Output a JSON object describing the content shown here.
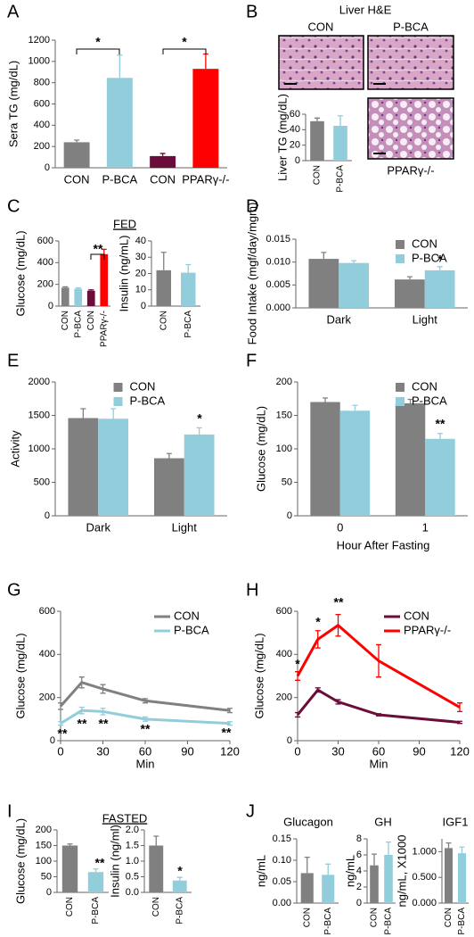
{
  "chart_data": [
    {
      "panel": "A",
      "type": "bar",
      "ylabel": "Sera TG (mg/dL)",
      "categories": [
        "CON",
        "P-BCA",
        "CON",
        "PPARγ-/-"
      ],
      "values": [
        240,
        845,
        110,
        930
      ],
      "errors": [
        20,
        215,
        25,
        140
      ],
      "colors": [
        "#808080",
        "#92cddc",
        "#6b0d3a",
        "#ff0000"
      ],
      "ylim": [
        0,
        1200
      ],
      "yticks": [
        0,
        200,
        400,
        600,
        800,
        1000,
        1200
      ],
      "annotations": [
        "*",
        "*"
      ]
    },
    {
      "panel": "B",
      "type": "bar",
      "title": "Liver H&E",
      "image_labels": [
        "CON",
        "P-BCA",
        "PPARγ-/-"
      ],
      "ylabel": "Liver TG (mg/dL)",
      "categories": [
        "CON",
        "P-BCA"
      ],
      "values": [
        51,
        45
      ],
      "errors": [
        4,
        13
      ],
      "colors": [
        "#808080",
        "#92cddc"
      ],
      "ylim": [
        0,
        60
      ],
      "yticks": [
        0,
        20,
        40,
        60
      ]
    },
    {
      "panel": "C",
      "type": "bar",
      "title": "FED",
      "ylabel": "Glucose (mg/dL)",
      "categories": [
        "CON",
        "P-BCA",
        "CON",
        "PPARγ-/-"
      ],
      "values": [
        170,
        160,
        142,
        478
      ],
      "errors": [
        8,
        8,
        8,
        45
      ],
      "colors": [
        "#808080",
        "#92cddc",
        "#6b0d3a",
        "#ff0000"
      ],
      "ylim": [
        0,
        600
      ],
      "yticks": [
        0,
        200,
        400,
        600
      ],
      "annotations": [
        "**"
      ]
    },
    {
      "type": "bar",
      "ylabel": "Insulin (ng/mL)",
      "categories": [
        "CON",
        "P-BCA"
      ],
      "values": [
        22,
        20.5
      ],
      "errors": [
        11,
        5
      ],
      "colors": [
        "#808080",
        "#92cddc"
      ],
      "ylim": [
        0,
        40
      ],
      "yticks": [
        0,
        10,
        20,
        30,
        40
      ]
    },
    {
      "panel": "D",
      "type": "bar",
      "ylabel": "Food Intake (mgf/day/mgm)",
      "categories": [
        "Dark",
        "Light"
      ],
      "series": [
        {
          "name": "CON",
          "color": "#808080",
          "values": [
            0.0107,
            0.0062
          ],
          "errors": [
            0.0014,
            0.0006
          ]
        },
        {
          "name": "P-BCA",
          "color": "#92cddc",
          "values": [
            0.0098,
            0.0082
          ],
          "errors": [
            0.0005,
            0.0008
          ]
        }
      ],
      "ylim": [
        0,
        0.015
      ],
      "yticks": [
        {
          "value": 0,
          "label": "0.000"
        },
        {
          "value": 0.005,
          "label": "0.005"
        },
        {
          "value": 0.01,
          "label": "0.010"
        },
        {
          "value": 0.015,
          "label": "0.015"
        }
      ],
      "legend": "upper right",
      "annotations": [
        "*"
      ]
    },
    {
      "panel": "E",
      "type": "bar",
      "ylabel": "Activity",
      "categories": [
        "Dark",
        "Light"
      ],
      "series": [
        {
          "name": "CON",
          "color": "#808080",
          "values": [
            1460,
            860
          ],
          "errors": [
            140,
            70
          ]
        },
        {
          "name": "P-BCA",
          "color": "#92cddc",
          "values": [
            1450,
            1215
          ],
          "errors": [
            150,
            100
          ]
        }
      ],
      "ylim": [
        0,
        2000
      ],
      "yticks": [
        0,
        500,
        1000,
        1500,
        2000
      ],
      "legend": "upper center",
      "annotations": [
        "*"
      ]
    },
    {
      "panel": "F",
      "type": "bar",
      "ylabel": "Glucose (mg/dL)",
      "xlabel": "Hour After Fasting",
      "categories": [
        "0",
        "1"
      ],
      "series": [
        {
          "name": "CON",
          "color": "#808080",
          "values": [
            170,
            168
          ],
          "errors": [
            6,
            6
          ]
        },
        {
          "name": "P-BCA",
          "color": "#92cddc",
          "values": [
            157,
            115
          ],
          "errors": [
            8,
            8
          ]
        }
      ],
      "ylim": [
        0,
        200
      ],
      "yticks": [
        0,
        50,
        100,
        150,
        200
      ],
      "legend": "upper right",
      "annotations": [
        "**"
      ]
    },
    {
      "panel": "G",
      "type": "line",
      "ylabel": "Glucose (mg/dL)",
      "xlabel": "Min",
      "x": [
        0,
        15,
        30,
        60,
        120
      ],
      "series": [
        {
          "name": "CON",
          "color": "#808080",
          "values": [
            160,
            270,
            240,
            185,
            140
          ],
          "errors": [
            15,
            25,
            20,
            10,
            10
          ]
        },
        {
          "name": "P-BCA",
          "color": "#92cddc",
          "values": [
            80,
            140,
            135,
            100,
            80
          ],
          "errors": [
            8,
            15,
            15,
            10,
            8
          ]
        }
      ],
      "xlim": [
        0,
        120
      ],
      "xticks": [
        0,
        30,
        60,
        90,
        120
      ],
      "ylim": [
        0,
        600
      ],
      "yticks": [
        0,
        200,
        400,
        600
      ],
      "legend": "upper right",
      "annotations": [
        "**",
        "**",
        "**",
        "**",
        "**"
      ]
    },
    {
      "panel": "H",
      "type": "line",
      "ylabel": "Glucose (mg/dL)",
      "xlabel": "Min",
      "x": [
        0,
        15,
        30,
        60,
        120
      ],
      "series": [
        {
          "name": "CON",
          "color": "#6b0d3a",
          "values": [
            120,
            235,
            180,
            120,
            85
          ],
          "errors": [
            10,
            10,
            10,
            5,
            5
          ]
        },
        {
          "name": "PPARγ-/-",
          "color": "#ff0000",
          "values": [
            300,
            470,
            535,
            370,
            155
          ],
          "errors": [
            20,
            40,
            50,
            75,
            20
          ]
        }
      ],
      "xlim": [
        0,
        120
      ],
      "xticks": [
        0,
        30,
        60,
        90,
        120
      ],
      "ylim": [
        0,
        600
      ],
      "yticks": [
        0,
        200,
        400,
        600
      ],
      "legend": "upper right",
      "annotations": [
        "*",
        "*",
        "**"
      ]
    },
    {
      "panel": "I",
      "type": "bar",
      "title": "FASTED",
      "ylabel": "Glucose (mg/dL)",
      "categories": [
        "CON",
        "P-BCA"
      ],
      "values": [
        150,
        65
      ],
      "errors": [
        5,
        10
      ],
      "colors": [
        "#808080",
        "#92cddc"
      ],
      "ylim": [
        0,
        200
      ],
      "yticks": [
        0,
        50,
        100,
        150,
        200
      ],
      "annotations": [
        "**"
      ]
    },
    {
      "type": "bar",
      "ylabel": "Insulin (ng/ml)",
      "categories": [
        "CON",
        "P-BCA"
      ],
      "values": [
        1.5,
        0.38
      ],
      "errors": [
        0.3,
        0.1
      ],
      "colors": [
        "#808080",
        "#92cddc"
      ],
      "ylim": [
        0,
        2
      ],
      "yticks": [
        {
          "value": 0,
          "label": "0.0"
        },
        {
          "value": 0.5,
          "label": "0.5"
        },
        {
          "value": 1,
          "label": "1.0"
        },
        {
          "value": 1.5,
          "label": "1.5"
        },
        {
          "value": 2,
          "label": "2.0"
        }
      ],
      "annotations": [
        "*"
      ]
    },
    {
      "panel": "J",
      "type": "bar",
      "title": "Glucagon",
      "ylabel": "ng/mL",
      "categories": [
        "CON",
        "P-BCA"
      ],
      "values": [
        0.07,
        0.066
      ],
      "errors": [
        0.037,
        0.025
      ],
      "colors": [
        "#808080",
        "#92cddc"
      ],
      "ylim": [
        0,
        0.15
      ],
      "yticks": [
        {
          "value": 0,
          "label": "0.00"
        },
        {
          "value": 0.05,
          "label": "0.05"
        },
        {
          "value": 0.1,
          "label": "0.10"
        },
        {
          "value": 0.15,
          "label": "0.15"
        }
      ]
    },
    {
      "type": "bar",
      "title": "GH",
      "ylabel": "ng/mL",
      "categories": [
        "CON",
        "P-BCA"
      ],
      "values": [
        4.7,
        6
      ],
      "errors": [
        1.4,
        1.6
      ],
      "colors": [
        "#808080",
        "#92cddc"
      ],
      "ylim": [
        0,
        8
      ],
      "yticks": [
        0,
        2,
        4,
        6,
        8
      ]
    },
    {
      "type": "bar",
      "title": "IGF1",
      "ylabel": "ng/mL, X1000",
      "categories": [
        "CON",
        "P-BCA"
      ],
      "values": [
        1.07,
        0.97
      ],
      "errors": [
        0.1,
        0.12
      ],
      "colors": [
        "#808080",
        "#92cddc"
      ],
      "ylim": [
        0,
        1.25
      ],
      "yticks": [
        {
          "value": 0,
          "label": "0.000"
        },
        {
          "value": 0.5,
          "label": "0.500"
        },
        {
          "value": 1,
          "label": "1.000"
        }
      ]
    }
  ]
}
